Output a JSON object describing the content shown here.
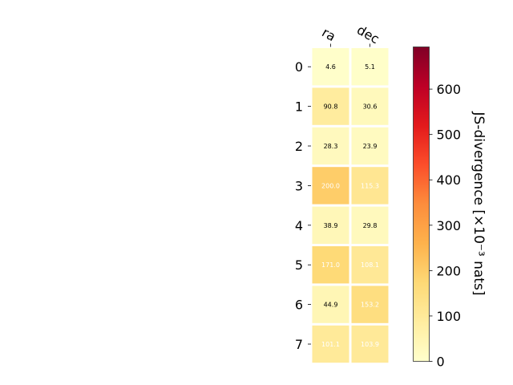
{
  "chart_data": {
    "type": "heatmap",
    "columns": [
      "ra",
      "dec"
    ],
    "rows": [
      "0",
      "1",
      "2",
      "3",
      "4",
      "5",
      "6",
      "7"
    ],
    "values": [
      [
        4.6,
        5.1
      ],
      [
        90.8,
        30.6
      ],
      [
        28.3,
        23.9
      ],
      [
        200.0,
        115.3
      ],
      [
        38.9,
        29.8
      ],
      [
        171.0,
        108.1
      ],
      [
        44.9,
        153.2
      ],
      [
        101.1,
        103.9
      ]
    ],
    "value_labels": [
      [
        "4.6",
        "5.1"
      ],
      [
        "90.8",
        "30.6"
      ],
      [
        "28.3",
        "23.9"
      ],
      [
        "200.0",
        "115.3"
      ],
      [
        "38.9",
        "29.8"
      ],
      [
        "171.0",
        "108.1"
      ],
      [
        "44.9",
        "153.2"
      ],
      [
        "101.1",
        "103.9"
      ]
    ],
    "colorbar": {
      "label": "JS-divergence [×10⁻³ nats]",
      "range": [
        0,
        693
      ],
      "ticks": [
        0,
        100,
        200,
        300,
        400,
        500,
        600
      ],
      "tick_labels": [
        "0",
        "100",
        "200",
        "300",
        "400",
        "500",
        "600"
      ],
      "colormap": "YlOrRd"
    }
  }
}
